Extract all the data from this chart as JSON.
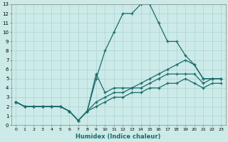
{
  "xlabel": "Humidex (Indice chaleur)",
  "bg_color": "#cceae8",
  "grid_color": "#aad4d2",
  "line_color": "#1a6b6b",
  "xlim": [
    -0.5,
    23.5
  ],
  "ylim": [
    0,
    13
  ],
  "xticks": [
    0,
    1,
    2,
    3,
    4,
    5,
    6,
    7,
    8,
    9,
    10,
    11,
    12,
    13,
    14,
    15,
    16,
    17,
    18,
    19,
    20,
    21,
    22,
    23
  ],
  "yticks": [
    0,
    1,
    2,
    3,
    4,
    5,
    6,
    7,
    8,
    9,
    10,
    11,
    12,
    13
  ],
  "lines": [
    {
      "x": [
        0,
        1,
        2,
        3,
        4,
        5,
        6,
        7,
        8,
        9,
        10,
        11,
        12,
        13,
        14,
        15,
        16,
        17,
        18,
        19,
        20,
        21,
        22,
        23
      ],
      "y": [
        2.5,
        2,
        2,
        2,
        2,
        2,
        1.5,
        0.5,
        1.5,
        5,
        8,
        10,
        12,
        12,
        13,
        13,
        11,
        9,
        9,
        7.5,
        6.5,
        5,
        5,
        5
      ]
    },
    {
      "x": [
        0,
        1,
        2,
        3,
        4,
        5,
        6,
        7,
        8,
        9,
        10,
        11,
        12,
        13,
        14,
        15,
        16,
        17,
        18,
        19,
        20,
        21,
        22,
        23
      ],
      "y": [
        2.5,
        2,
        2,
        2,
        2,
        2,
        1.5,
        0.5,
        1.5,
        5.5,
        3.5,
        4,
        4,
        4,
        4.5,
        5,
        5.5,
        6,
        6.5,
        7,
        6.5,
        5,
        5,
        5
      ]
    },
    {
      "x": [
        0,
        1,
        2,
        3,
        4,
        5,
        6,
        7,
        8,
        9,
        10,
        11,
        12,
        13,
        14,
        15,
        16,
        17,
        18,
        19,
        20,
        21,
        22,
        23
      ],
      "y": [
        2.5,
        2,
        2,
        2,
        2,
        2,
        1.5,
        0.5,
        1.5,
        2.5,
        3,
        3.5,
        3.5,
        4,
        4,
        4.5,
        5,
        5.5,
        5.5,
        5.5,
        5.5,
        4.5,
        5,
        5
      ]
    },
    {
      "x": [
        0,
        1,
        2,
        3,
        4,
        5,
        6,
        7,
        8,
        9,
        10,
        11,
        12,
        13,
        14,
        15,
        16,
        17,
        18,
        19,
        20,
        21,
        22,
        23
      ],
      "y": [
        2.5,
        2,
        2,
        2,
        2,
        2,
        1.5,
        0.5,
        1.5,
        2,
        2.5,
        3,
        3,
        3.5,
        3.5,
        4,
        4,
        4.5,
        4.5,
        5,
        4.5,
        4,
        4.5,
        4.5
      ]
    }
  ]
}
